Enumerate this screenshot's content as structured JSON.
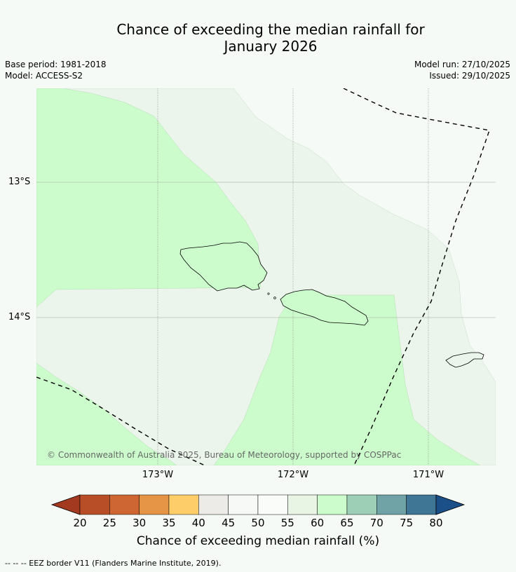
{
  "title_line1": "Chance of exceeding the median rainfall for",
  "title_line2": "January 2026",
  "base_period": "Base period: 1981-2018",
  "model": "Model: ACCESS-S2",
  "model_run": "Model run: 27/10/2025",
  "issued": "Issued: 29/10/2025",
  "lat_labels": [
    "13°S",
    "14°S"
  ],
  "lon_labels": [
    "173°W",
    "172°W",
    "171°W"
  ],
  "copyright": "© Commonwealth of Australia 2025, Bureau of Meteorology, supported by COSPPac",
  "colorbar": {
    "ticks": [
      "20",
      "25",
      "30",
      "35",
      "40",
      "45",
      "50",
      "55",
      "60",
      "65",
      "70",
      "75",
      "80"
    ],
    "colors": [
      "#a33a1f",
      "#b84e27",
      "#cd6633",
      "#e59545",
      "#fdcd6a",
      "#ecebe7",
      "#f6f9f6",
      "#f9fcf8",
      "#e8f5e4",
      "#ccfccc",
      "#9dcfb7",
      "#6fa3a6",
      "#3f7696",
      "#1b4f87"
    ],
    "title": "Chance of exceeding median rainfall (%)"
  },
  "footer": "-- -- -- EEZ border V11 (Flanders Marine Institute, 2019).",
  "colors": {
    "green": "#ccfccc",
    "light": "#ebf5eb",
    "white": "#f6faf7"
  }
}
